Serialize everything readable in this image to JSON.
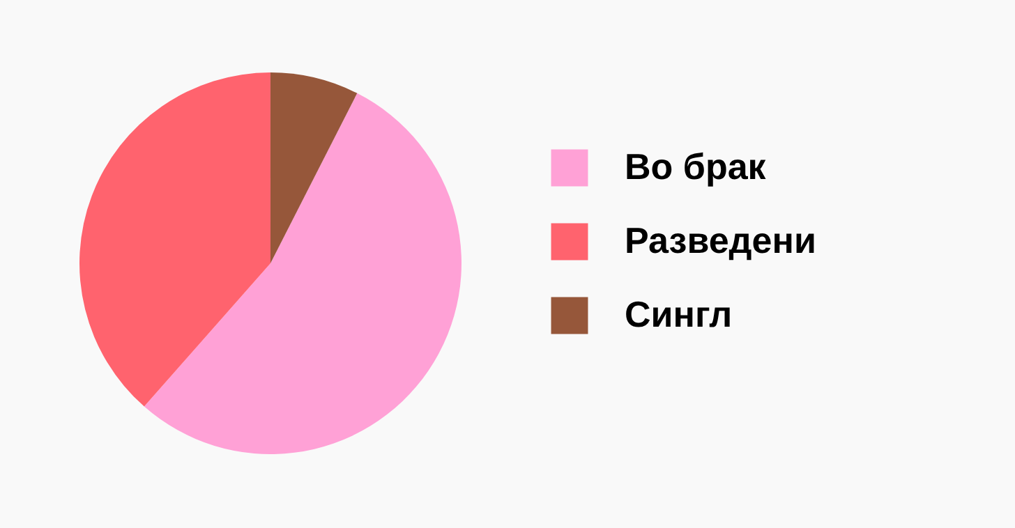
{
  "chart_data": {
    "type": "pie",
    "categories": [
      "Во брак",
      "Разведени",
      "Сингл"
    ],
    "values": [
      54,
      38.5,
      7.5
    ],
    "colors": [
      "#ffa1d6",
      "#ff636e",
      "#96573a"
    ],
    "legend": "right"
  }
}
